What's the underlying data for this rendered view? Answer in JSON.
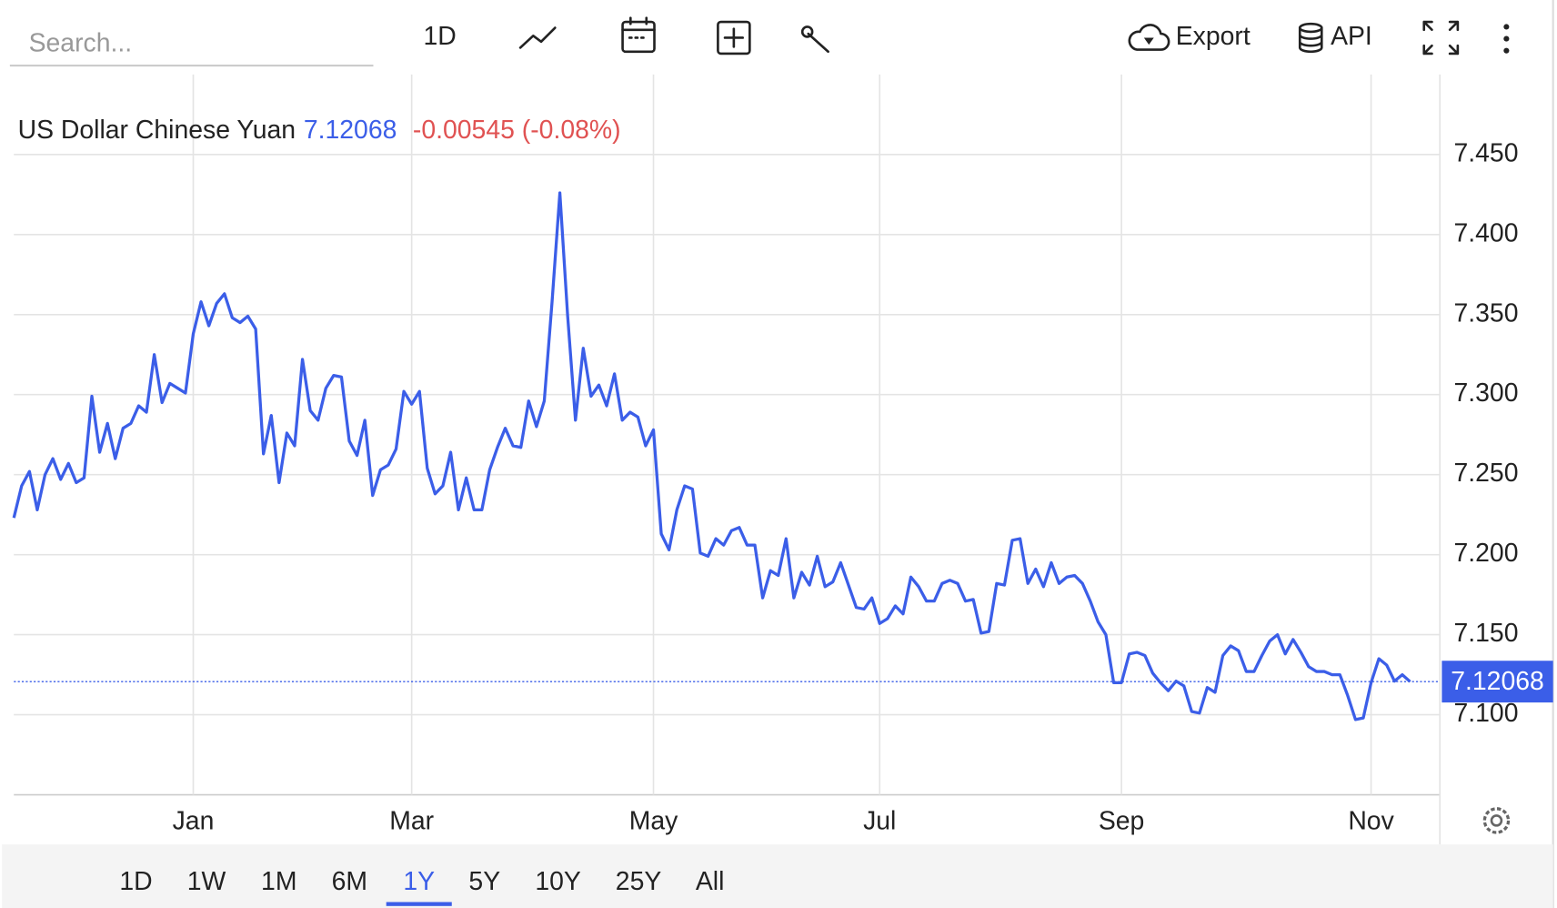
{
  "search_placeholder": "Search...",
  "toolbar": {
    "interval": "1D",
    "export": "Export",
    "api": "API"
  },
  "ranges": {
    "items": [
      "1D",
      "1W",
      "1M",
      "6M",
      "1Y",
      "5Y",
      "10Y",
      "25Y",
      "All"
    ],
    "selected": 4
  },
  "chart_data": {
    "type": "line",
    "series": [
      {
        "name": "US Dollar Chinese Yuan",
        "color": "#3b5ee8",
        "values": [
          7.223,
          7.243,
          7.252,
          7.228,
          7.25,
          7.26,
          7.247,
          7.257,
          7.245,
          7.248,
          7.299,
          7.264,
          7.282,
          7.26,
          7.279,
          7.282,
          7.293,
          7.289,
          7.325,
          7.295,
          7.307,
          7.304,
          7.301,
          7.338,
          7.358,
          7.343,
          7.357,
          7.363,
          7.348,
          7.345,
          7.349,
          7.341,
          7.263,
          7.287,
          7.245,
          7.276,
          7.268,
          7.322,
          7.29,
          7.284,
          7.304,
          7.312,
          7.311,
          7.271,
          7.262,
          7.284,
          7.237,
          7.253,
          7.256,
          7.266,
          7.302,
          7.294,
          7.302,
          7.254,
          7.238,
          7.243,
          7.264,
          7.228,
          7.248,
          7.228,
          7.228,
          7.253,
          7.267,
          7.279,
          7.268,
          7.267,
          7.296,
          7.28,
          7.296,
          7.358,
          7.426,
          7.349,
          7.284,
          7.329,
          7.299,
          7.306,
          7.293,
          7.313,
          7.284,
          7.289,
          7.286,
          7.268,
          7.278,
          7.213,
          7.203,
          7.228,
          7.243,
          7.241,
          7.201,
          7.199,
          7.21,
          7.206,
          7.215,
          7.217,
          7.206,
          7.206,
          7.173,
          7.19,
          7.187,
          7.21,
          7.173,
          7.189,
          7.181,
          7.199,
          7.18,
          7.183,
          7.195,
          7.181,
          7.167,
          7.166,
          7.173,
          7.157,
          7.16,
          7.168,
          7.163,
          7.186,
          7.18,
          7.171,
          7.171,
          7.182,
          7.184,
          7.182,
          7.171,
          7.172,
          7.151,
          7.152,
          7.182,
          7.181,
          7.209,
          7.21,
          7.182,
          7.191,
          7.18,
          7.195,
          7.182,
          7.186,
          7.187,
          7.182,
          7.171,
          7.158,
          7.15,
          7.12,
          7.12,
          7.138,
          7.139,
          7.137,
          7.126,
          7.12,
          7.115,
          7.121,
          7.118,
          7.102,
          7.101,
          7.117,
          7.114,
          7.137,
          7.143,
          7.14,
          7.127,
          7.127,
          7.137,
          7.146,
          7.15,
          7.138,
          7.147,
          7.139,
          7.13,
          7.127,
          7.127,
          7.125,
          7.125,
          7.112,
          7.097,
          7.098,
          7.12,
          7.135,
          7.131,
          7.121,
          7.125,
          7.12068
        ]
      }
    ],
    "categories": [
      null,
      null,
      null,
      null,
      null,
      null,
      null,
      null,
      null,
      null,
      null,
      null,
      null,
      null,
      null,
      null,
      null,
      null,
      null,
      null,
      null,
      null,
      null,
      "Jan",
      null,
      null,
      null,
      null,
      null,
      null,
      null,
      null,
      null,
      null,
      null,
      null,
      null,
      null,
      null,
      null,
      null,
      null,
      null,
      null,
      null,
      null,
      null,
      null,
      null,
      null,
      null,
      "Mar",
      null,
      null,
      null,
      null,
      null,
      null,
      null,
      null,
      null,
      null,
      null,
      null,
      null,
      null,
      null,
      null,
      null,
      null,
      null,
      null,
      null,
      null,
      null,
      null,
      null,
      null,
      null,
      null,
      null,
      null,
      "May",
      null,
      null,
      null,
      null,
      null,
      null,
      null,
      null,
      null,
      null,
      null,
      null,
      null,
      null,
      null,
      null,
      null,
      null,
      null,
      null,
      null,
      null,
      null,
      null,
      null,
      null,
      null,
      null,
      "Jul",
      null,
      null,
      null,
      null,
      null,
      null,
      null,
      null,
      null,
      null,
      null,
      null,
      null,
      null,
      null,
      null,
      null,
      null,
      null,
      null,
      null,
      null,
      null,
      null,
      null,
      null,
      null,
      null,
      null,
      null,
      "Sep",
      null,
      null,
      null,
      null,
      null,
      null,
      null,
      null,
      null,
      null,
      null,
      null,
      null,
      null,
      null,
      null,
      null,
      null,
      null,
      null,
      null,
      null,
      null,
      null,
      null,
      null,
      null,
      null,
      null,
      null,
      null,
      "Nov",
      null,
      null,
      null,
      null,
      null
    ],
    "last": 7.12068,
    "change_text": "-0.00545 (-0.08%)",
    "ylim": [
      7.05,
      7.5
    ],
    "yticks": [
      {
        "value": 7.1,
        "label": "7.100"
      },
      {
        "value": 7.15,
        "label": "7.150"
      },
      {
        "value": 7.2,
        "label": "7.200"
      },
      {
        "value": 7.25,
        "label": "7.250"
      },
      {
        "value": 7.3,
        "label": "7.300"
      },
      {
        "value": 7.35,
        "label": "7.350"
      },
      {
        "value": 7.4,
        "label": "7.400"
      },
      {
        "value": 7.45,
        "label": "7.450"
      }
    ],
    "grid": true
  }
}
